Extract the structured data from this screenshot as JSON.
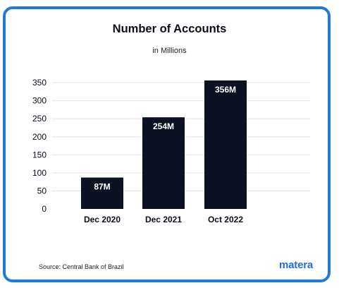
{
  "title": "Number of Accounts",
  "subtitle": "in Millions",
  "source": "Source: Central Bank of Brazil",
  "brand": "matera",
  "colors": {
    "frame": "#1f7ae0",
    "bar": "#0c1221",
    "bar_label": "#ffffff",
    "grid": "#e4e4e4",
    "brand": "#1f6fd6"
  },
  "chart_data": {
    "type": "bar",
    "title": "Number of Accounts",
    "subtitle": "in Millions",
    "categories": [
      "Dec 2020",
      "Dec 2021",
      "Oct 2022"
    ],
    "values": [
      87,
      254,
      356
    ],
    "data_labels": [
      "87M",
      "254M",
      "356M"
    ],
    "yticks": [
      0,
      50,
      100,
      150,
      200,
      250,
      300,
      350
    ],
    "ylim": [
      0,
      356
    ],
    "xlabel": "",
    "ylabel": "",
    "grid": true,
    "legend": "none"
  }
}
